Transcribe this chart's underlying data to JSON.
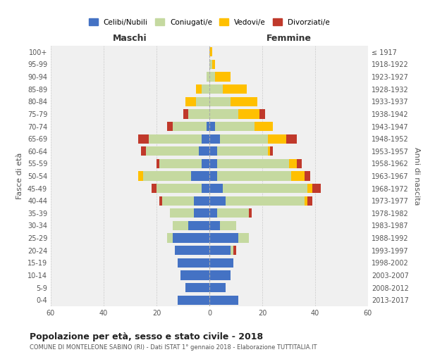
{
  "age_groups": [
    "0-4",
    "5-9",
    "10-14",
    "15-19",
    "20-24",
    "25-29",
    "30-34",
    "35-39",
    "40-44",
    "45-49",
    "50-54",
    "55-59",
    "60-64",
    "65-69",
    "70-74",
    "75-79",
    "80-84",
    "85-89",
    "90-94",
    "95-99",
    "100+"
  ],
  "birth_years": [
    "2013-2017",
    "2008-2012",
    "2003-2007",
    "1998-2002",
    "1993-1997",
    "1988-1992",
    "1983-1987",
    "1978-1982",
    "1973-1977",
    "1968-1972",
    "1963-1967",
    "1958-1962",
    "1953-1957",
    "1948-1952",
    "1943-1947",
    "1938-1942",
    "1933-1937",
    "1928-1932",
    "1923-1927",
    "1918-1922",
    "≤ 1917"
  ],
  "colors": {
    "celibi": "#4472c4",
    "coniugati": "#c5d9a0",
    "vedovi": "#ffc000",
    "divorziati": "#c0392b"
  },
  "maschi": {
    "celibi": [
      12,
      9,
      11,
      12,
      13,
      14,
      8,
      6,
      6,
      3,
      7,
      3,
      4,
      3,
      1,
      0,
      0,
      0,
      0,
      0,
      0
    ],
    "coniugati": [
      0,
      0,
      0,
      0,
      0,
      2,
      6,
      9,
      12,
      17,
      18,
      16,
      20,
      20,
      13,
      8,
      5,
      3,
      1,
      0,
      0
    ],
    "vedovi": [
      0,
      0,
      0,
      0,
      0,
      0,
      0,
      0,
      0,
      0,
      2,
      0,
      0,
      0,
      0,
      0,
      4,
      2,
      0,
      0,
      0
    ],
    "divorziati": [
      0,
      0,
      0,
      0,
      0,
      0,
      0,
      0,
      1,
      2,
      0,
      1,
      2,
      4,
      2,
      2,
      0,
      0,
      0,
      0,
      0
    ]
  },
  "femmine": {
    "celibi": [
      11,
      6,
      8,
      9,
      8,
      11,
      4,
      3,
      6,
      5,
      3,
      3,
      3,
      4,
      2,
      0,
      0,
      0,
      0,
      0,
      0
    ],
    "coniugati": [
      0,
      0,
      0,
      0,
      1,
      4,
      6,
      12,
      30,
      32,
      28,
      27,
      19,
      18,
      15,
      11,
      8,
      5,
      2,
      1,
      0
    ],
    "vedovi": [
      0,
      0,
      0,
      0,
      0,
      0,
      0,
      0,
      1,
      2,
      5,
      3,
      1,
      7,
      7,
      8,
      10,
      9,
      6,
      1,
      1
    ],
    "divorziati": [
      0,
      0,
      0,
      0,
      1,
      0,
      0,
      1,
      2,
      3,
      2,
      2,
      1,
      4,
      0,
      2,
      0,
      0,
      0,
      0,
      0
    ]
  },
  "title": "Popolazione per età, sesso e stato civile - 2018",
  "subtitle": "COMUNE DI MONTELEONE SABINO (RI) - Dati ISTAT 1° gennaio 2018 - Elaborazione TUTTITALIA.IT",
  "xlabel_left": "Maschi",
  "xlabel_right": "Femmine",
  "ylabel": "Fasce di età",
  "ylabel_right": "Anni di nascita",
  "xlim": 60,
  "xticks": [
    0,
    20,
    40,
    60
  ],
  "legend_labels": [
    "Celibi/Nubili",
    "Coniugati/e",
    "Vedovi/e",
    "Divorziati/e"
  ],
  "bg_color": "#ffffff",
  "plot_bg": "#f0f0f0",
  "grid_color": "#cccccc"
}
